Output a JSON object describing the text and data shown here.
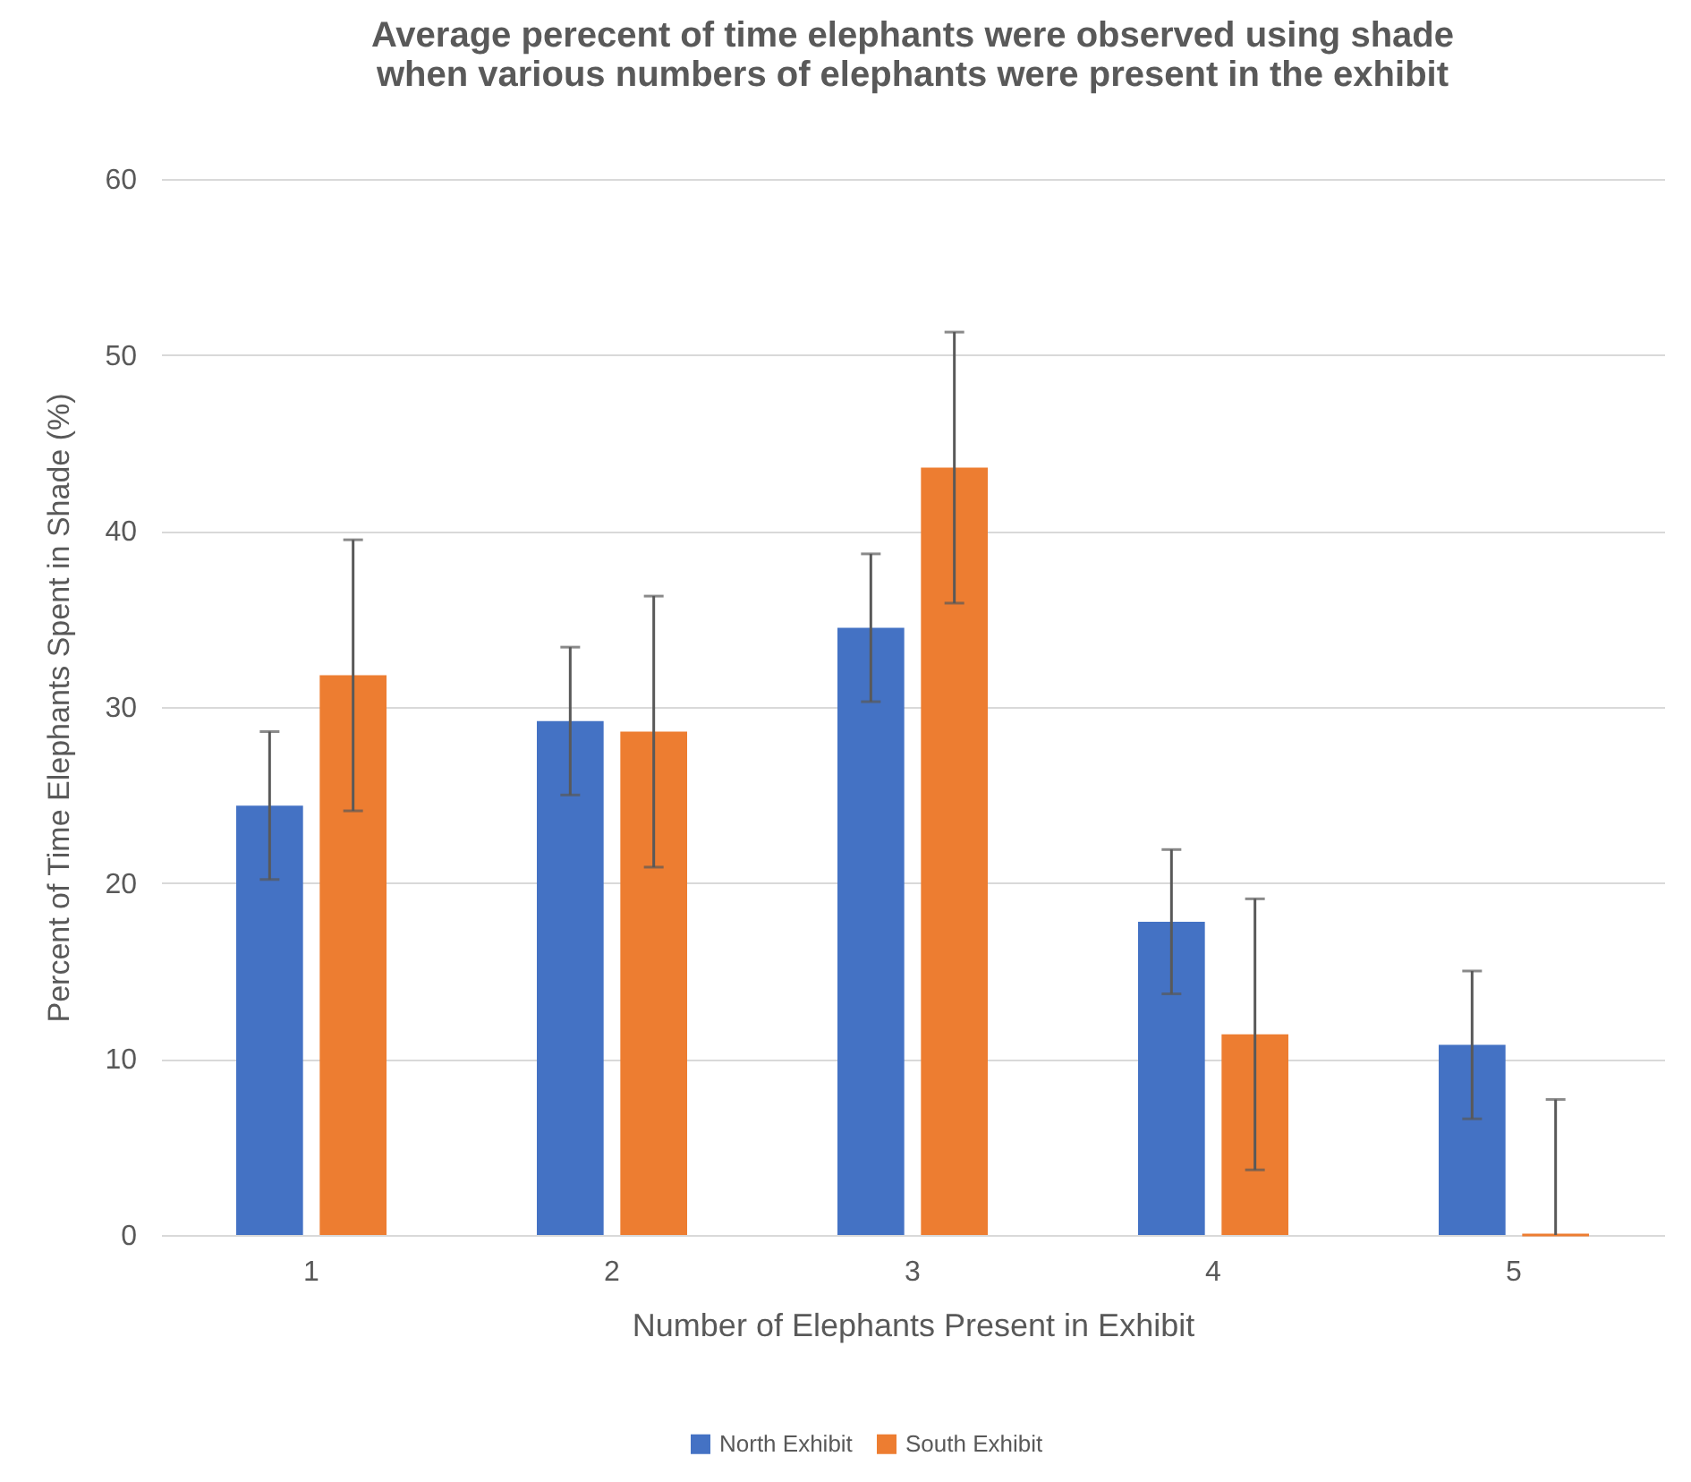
{
  "chart_data": {
    "type": "bar",
    "title": "Average perecent of time elephants were observed using shade when various numbers of elephants were present in the exhibit",
    "xlabel": "Number of Elephants Present in Exhibit",
    "ylabel": "Percent of Time Elephants Spent in Shade (%)",
    "categories": [
      "1",
      "2",
      "3",
      "4",
      "5"
    ],
    "series": [
      {
        "name": "North Exhibit",
        "color": "#4472c4",
        "values": [
          24.4,
          29.2,
          34.5,
          17.8,
          10.8
        ],
        "errors": [
          4.2,
          4.2,
          4.2,
          4.1,
          4.2
        ]
      },
      {
        "name": "South Exhibit",
        "color": "#ed7d31",
        "values": [
          31.8,
          28.6,
          43.6,
          11.4,
          0
        ],
        "errors": [
          7.7,
          7.7,
          7.7,
          7.7,
          [
            0,
            7.7
          ]
        ]
      }
    ],
    "ylim": [
      0,
      60
    ],
    "yticks": [
      0,
      10,
      20,
      30,
      40,
      50,
      60
    ],
    "grid": "y",
    "legend": "bottom"
  }
}
